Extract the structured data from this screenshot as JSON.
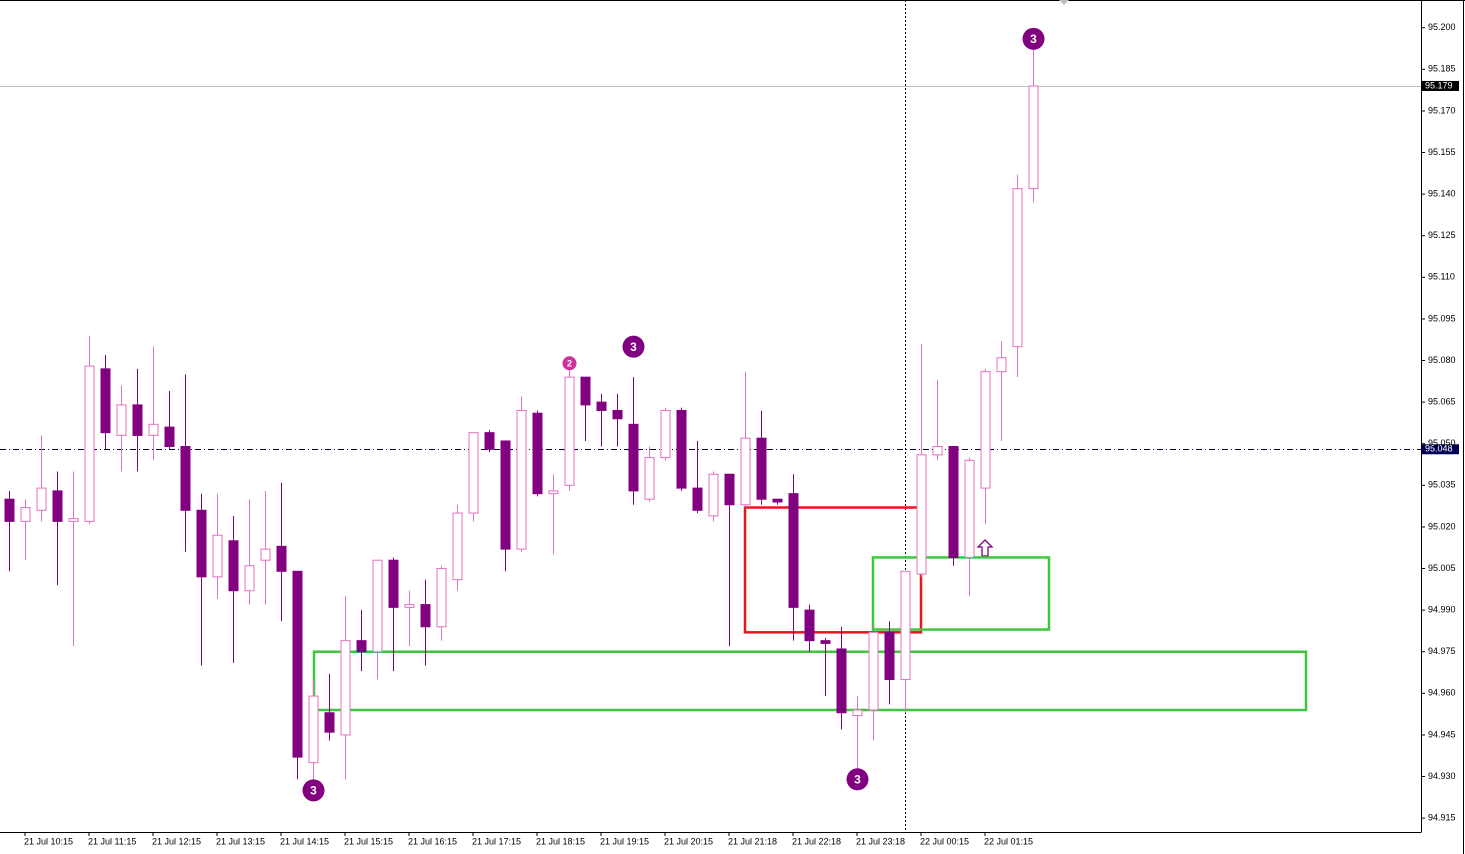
{
  "chart_data": {
    "type": "candlestick",
    "up_color": "#e670c2",
    "down_color": "#800080",
    "categories": [
      null,
      "21 Jul 10:15",
      null,
      null,
      null,
      "21 Jul 11:15",
      null,
      null,
      null,
      "21 Jul 12:15",
      null,
      null,
      null,
      "21 Jul 13:15",
      null,
      null,
      null,
      "21 Jul 14:15",
      null,
      null,
      null,
      "21 Jul 15:15",
      null,
      null,
      null,
      "21 Jul 16:15",
      null,
      null,
      null,
      "21 Jul 17:15",
      null,
      null,
      null,
      "21 Jul 18:15",
      null,
      null,
      null,
      "21 Jul 19:15",
      null,
      null,
      null,
      "21 Jul 20:15",
      null,
      null,
      null,
      "21 Jul 21:18",
      null,
      null,
      null,
      "21 Jul 22:18",
      null,
      null,
      null,
      "21 Jul 23:18",
      null,
      null,
      null,
      "22 Jul 00:15",
      null,
      null,
      null,
      "22 Jul 01:15",
      null,
      null,
      null
    ],
    "open": [
      95.03,
      95.022,
      95.026,
      95.033,
      95.022,
      95.022,
      95.077,
      95.053,
      95.064,
      95.053,
      95.056,
      95.049,
      95.026,
      95.002,
      95.015,
      94.997,
      95.008,
      95.013,
      95.004,
      94.935,
      94.953,
      94.945,
      94.979,
      94.975,
      95.008,
      94.991,
      94.992,
      94.984,
      95.001,
      95.025,
      95.054,
      95.051,
      95.012,
      95.061,
      95.032,
      95.035,
      95.074,
      95.065,
      95.062,
      95.057,
      95.03,
      95.045,
      95.062,
      95.034,
      95.024,
      95.039,
      95.028,
      95.052,
      95.03,
      95.032,
      94.99,
      94.979,
      94.976,
      94.952,
      94.954,
      94.982,
      94.965,
      95.003,
      95.046,
      95.049,
      95.009,
      95.034,
      95.076,
      95.085,
      95.142
    ],
    "high": [
      95.033,
      95.03,
      95.053,
      95.04,
      95.04,
      95.089,
      95.082,
      95.071,
      95.077,
      95.085,
      95.069,
      95.075,
      95.032,
      95.032,
      95.024,
      95.03,
      95.033,
      95.036,
      95.004,
      94.965,
      94.967,
      94.995,
      94.99,
      95.008,
      95.009,
      94.997,
      95.001,
      95.006,
      95.028,
      95.054,
      95.055,
      95.051,
      95.067,
      95.062,
      95.039,
      95.077,
      95.074,
      95.068,
      95.068,
      95.074,
      95.049,
      95.063,
      95.063,
      95.051,
      95.04,
      95.039,
      95.076,
      95.062,
      95.03,
      95.039,
      94.992,
      94.98,
      94.984,
      94.959,
      94.982,
      94.986,
      95.004,
      95.086,
      95.073,
      95.049,
      95.045,
      95.077,
      95.087,
      95.147,
      95.194
    ],
    "low": [
      95.004,
      95.008,
      95.022,
      94.999,
      94.977,
      95.021,
      95.048,
      95.04,
      95.04,
      95.044,
      95.048,
      95.011,
      94.97,
      94.994,
      94.971,
      94.992,
      94.992,
      94.986,
      94.929,
      94.925,
      94.943,
      94.929,
      94.968,
      94.965,
      94.968,
      94.977,
      94.97,
      94.979,
      94.997,
      95.022,
      95.047,
      95.004,
      95.011,
      95.031,
      95.01,
      95.033,
      95.051,
      95.049,
      95.049,
      95.028,
      95.029,
      95.044,
      95.033,
      95.025,
      95.022,
      94.977,
      95.027,
      95.028,
      95.028,
      94.979,
      94.975,
      94.959,
      94.947,
      94.932,
      94.943,
      94.956,
      94.953,
      95.002,
      95.044,
      95.006,
      94.995,
      95.021,
      95.051,
      95.074,
      95.137
    ],
    "close": [
      95.022,
      95.027,
      95.034,
      95.022,
      95.023,
      95.078,
      95.054,
      95.064,
      95.053,
      95.057,
      95.049,
      95.026,
      95.002,
      95.017,
      94.997,
      95.006,
      95.012,
      95.004,
      94.937,
      94.959,
      94.946,
      94.979,
      94.975,
      95.008,
      94.991,
      94.992,
      94.984,
      95.005,
      95.025,
      95.054,
      95.048,
      95.012,
      95.062,
      95.032,
      95.033,
      95.074,
      95.064,
      95.062,
      95.059,
      95.033,
      95.045,
      95.062,
      95.034,
      95.026,
      95.039,
      95.028,
      95.052,
      95.03,
      95.029,
      94.991,
      94.979,
      94.978,
      94.953,
      94.954,
      94.982,
      94.965,
      95.004,
      95.046,
      95.049,
      95.009,
      95.044,
      95.076,
      95.081,
      95.142,
      95.179
    ],
    "ylim": [
      94.91,
      95.21
    ],
    "yticks": [
      {
        "value": 95.2,
        "label": "95.200"
      },
      95.185,
      {
        "value": 95.17,
        "label": "95.170"
      },
      95.155,
      {
        "value": 95.14,
        "label": "95.140"
      },
      95.125,
      {
        "value": 95.11,
        "label": "95.110"
      },
      95.095,
      {
        "value": 95.08,
        "label": "95.080"
      },
      95.065,
      {
        "value": 95.05,
        "label": "95.050"
      },
      95.035,
      {
        "value": 95.02,
        "label": "95.020"
      },
      95.005,
      {
        "value": 94.99,
        "label": "94.990"
      },
      94.975,
      {
        "value": 94.96,
        "label": "94.960"
      },
      94.945,
      {
        "value": 94.93,
        "label": "94.930"
      },
      94.915
    ],
    "price_lines": [
      {
        "value": 95.179,
        "label": "95.179",
        "color": "#c0c0c0",
        "box": "#000000"
      },
      {
        "value": 95.048,
        "label": "95.048",
        "color": "#000040",
        "box": "#000050"
      }
    ],
    "zones": [
      {
        "high": 95.027,
        "low": 94.982,
        "color": "#e8141e"
      },
      {
        "high": 95.009,
        "low": 94.983,
        "color": "#3cc83c"
      },
      {
        "high": 94.975,
        "low": 94.954,
        "color": "#3cc83c"
      }
    ],
    "markers": [
      {
        "label": "3",
        "value": 94.925,
        "color": "#800080"
      },
      {
        "label": "2",
        "value": 95.079,
        "color": "#d0309a"
      },
      {
        "label": "3",
        "value": 95.085,
        "color": "#800080"
      },
      {
        "label": "3",
        "value": 94.929,
        "color": "#800080"
      },
      {
        "label": "3",
        "value": 95.196,
        "color": "#800080"
      }
    ]
  }
}
